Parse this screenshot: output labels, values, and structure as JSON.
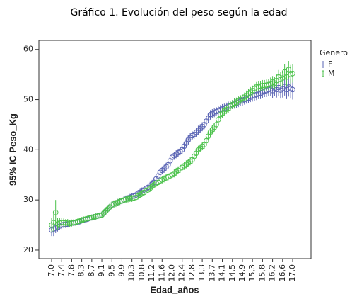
{
  "chart_data": {
    "type": "errorbar",
    "title": "Gráfico 1. Evolución del peso según la edad",
    "x_label": "Edad_años",
    "y_label": "95% IC Peso_Kg",
    "legend_title": "Genero",
    "categories": [
      "7,0",
      null,
      null,
      null,
      null,
      "7,4",
      null,
      null,
      null,
      null,
      "7,8",
      null,
      null,
      null,
      null,
      "8,3",
      null,
      null,
      null,
      null,
      "8,7",
      null,
      null,
      null,
      null,
      "9,1",
      null,
      null,
      null,
      null,
      "9,5",
      null,
      null,
      null,
      null,
      "9,9",
      null,
      null,
      null,
      null,
      "10,3",
      null,
      null,
      null,
      null,
      "10,8",
      null,
      null,
      null,
      null,
      "11,2",
      null,
      null,
      null,
      null,
      "11,6",
      null,
      null,
      null,
      null,
      "12,0",
      null,
      null,
      null,
      null,
      "12,4",
      null,
      null,
      null,
      null,
      "12,8",
      null,
      null,
      null,
      null,
      "13,3",
      null,
      null,
      null,
      null,
      "13,7",
      null,
      null,
      null,
      null,
      "14,1",
      null,
      null,
      null,
      null,
      "14,5",
      null,
      null,
      null,
      null,
      "14,9",
      null,
      null,
      null,
      null,
      "15,3",
      null,
      null,
      null,
      null,
      "15,8",
      null,
      null,
      null,
      null,
      "16,2",
      null,
      null,
      null,
      null,
      "16,6",
      null,
      null,
      null,
      null,
      "17,0"
    ],
    "series": [
      {
        "name": "F",
        "color": "#5a64b4",
        "values": [
          24.0,
          24.2,
          24.4,
          24.6,
          24.8,
          25.0,
          25.1,
          25.1,
          25.2,
          25.3,
          25.4,
          25.4,
          25.5,
          25.6,
          25.7,
          25.9,
          26.0,
          26.1,
          26.2,
          26.4,
          26.5,
          26.6,
          26.7,
          26.8,
          26.9,
          27.0,
          27.4,
          27.8,
          28.2,
          28.6,
          29.0,
          29.2,
          29.3,
          29.5,
          29.7,
          29.8,
          30.0,
          30.2,
          30.3,
          30.5,
          30.7,
          30.8,
          31.0,
          31.3,
          31.5,
          31.8,
          32.0,
          32.3,
          32.5,
          32.8,
          33.2,
          33.5,
          34.2,
          34.8,
          35.5,
          35.9,
          36.2,
          36.6,
          37.0,
          37.8,
          38.5,
          38.8,
          39.1,
          39.4,
          39.7,
          40.0,
          40.7,
          41.3,
          42.0,
          42.4,
          42.8,
          43.1,
          43.5,
          43.9,
          44.2,
          44.6,
          45.0,
          45.7,
          46.3,
          47.0,
          47.2,
          47.4,
          47.6,
          47.8,
          48.0,
          48.2,
          48.3,
          48.5,
          48.7,
          48.8,
          49.0,
          49.2,
          49.3,
          49.5,
          49.7,
          49.8,
          50.0,
          50.2,
          50.3,
          50.5,
          50.7,
          50.8,
          51.0,
          51.2,
          51.3,
          51.5,
          51.7,
          51.8,
          52.0,
          52.1,
          51.8,
          52.3,
          52.0,
          52.4,
          51.9,
          52.2,
          52.6,
          52.0,
          52.5,
          52.2,
          52.0
        ],
        "errors": [
          1.2,
          1.4,
          1.0,
          0.9,
          0.8,
          0.8,
          0.7,
          0.7,
          0.7,
          0.6,
          0.6,
          0.6,
          0.6,
          0.6,
          0.6,
          0.6,
          0.6,
          0.6,
          0.6,
          0.6,
          0.6,
          0.6,
          0.6,
          0.6,
          0.6,
          0.6,
          0.7,
          0.7,
          0.7,
          0.7,
          0.7,
          0.7,
          0.7,
          0.7,
          0.7,
          0.7,
          0.7,
          0.7,
          0.7,
          0.7,
          0.7,
          0.7,
          0.7,
          0.7,
          0.7,
          0.7,
          0.7,
          0.7,
          0.8,
          0.8,
          0.8,
          0.8,
          0.8,
          0.8,
          0.8,
          0.8,
          0.8,
          0.8,
          0.8,
          0.8,
          0.8,
          0.8,
          0.8,
          0.8,
          0.8,
          0.8,
          0.9,
          0.9,
          0.9,
          0.9,
          0.9,
          0.9,
          0.9,
          0.9,
          0.9,
          0.9,
          0.9,
          0.9,
          0.9,
          0.9,
          0.9,
          0.9,
          0.9,
          0.9,
          0.9,
          0.9,
          0.9,
          0.9,
          0.9,
          0.9,
          0.9,
          1.0,
          1.0,
          1.0,
          1.0,
          1.0,
          1.0,
          1.0,
          1.0,
          1.0,
          1.1,
          1.1,
          1.1,
          1.1,
          1.2,
          1.2,
          1.2,
          1.3,
          1.3,
          1.4,
          1.5,
          1.6,
          1.6,
          1.7,
          1.7,
          1.8,
          1.8,
          1.9,
          1.9,
          2.0,
          2.0
        ]
      },
      {
        "name": "M",
        "color": "#4cc24c",
        "values": [
          25.0,
          25.5,
          27.5,
          25.2,
          25.4,
          25.5,
          25.5,
          25.4,
          25.5,
          25.3,
          25.4,
          25.5,
          25.5,
          25.7,
          25.8,
          26.0,
          26.1,
          26.2,
          26.3,
          26.4,
          26.5,
          26.6,
          26.7,
          26.8,
          26.9,
          27.0,
          27.4,
          27.8,
          28.2,
          28.6,
          29.0,
          29.2,
          29.3,
          29.5,
          29.7,
          29.8,
          30.0,
          30.1,
          30.2,
          30.3,
          30.3,
          30.4,
          30.5,
          30.8,
          31.0,
          31.3,
          31.5,
          31.8,
          32.0,
          32.3,
          32.7,
          33.0,
          33.3,
          33.5,
          33.8,
          34.0,
          34.2,
          34.4,
          34.6,
          34.8,
          35.0,
          35.3,
          35.6,
          35.9,
          36.2,
          36.5,
          36.8,
          37.1,
          37.4,
          37.7,
          38.0,
          38.7,
          39.3,
          40.0,
          40.3,
          40.7,
          41.0,
          41.8,
          42.7,
          43.5,
          44.0,
          44.5,
          45.0,
          46.0,
          47.0,
          47.3,
          47.7,
          48.0,
          48.3,
          48.7,
          49.0,
          49.3,
          49.5,
          49.8,
          50.0,
          50.3,
          50.5,
          50.8,
          51.2,
          51.5,
          51.8,
          52.2,
          52.5,
          52.6,
          52.7,
          52.8,
          52.8,
          52.9,
          53.0,
          53.2,
          53.5,
          53.3,
          53.8,
          54.5,
          54.0,
          54.3,
          55.5,
          54.5,
          56.0,
          55.0,
          55.2
        ],
        "errors": [
          1.5,
          1.8,
          2.5,
          1.2,
          1.0,
          0.9,
          0.8,
          0.8,
          0.7,
          0.7,
          0.7,
          0.7,
          0.7,
          0.6,
          0.6,
          0.6,
          0.6,
          0.6,
          0.6,
          0.6,
          0.6,
          0.6,
          0.6,
          0.6,
          0.6,
          0.6,
          0.7,
          0.7,
          0.7,
          0.7,
          0.7,
          0.7,
          0.7,
          0.7,
          0.7,
          0.7,
          0.7,
          0.7,
          0.7,
          0.7,
          0.7,
          0.7,
          0.7,
          0.7,
          0.7,
          0.7,
          0.7,
          0.7,
          0.7,
          0.7,
          0.7,
          0.7,
          0.7,
          0.7,
          0.7,
          0.7,
          0.7,
          0.7,
          0.7,
          0.7,
          0.8,
          0.8,
          0.8,
          0.8,
          0.8,
          0.8,
          0.8,
          0.8,
          0.8,
          0.8,
          0.8,
          0.8,
          0.8,
          0.8,
          0.8,
          0.8,
          0.8,
          0.9,
          0.9,
          0.9,
          0.9,
          0.9,
          0.9,
          0.9,
          0.9,
          0.9,
          0.9,
          0.9,
          0.9,
          0.9,
          0.9,
          0.9,
          0.9,
          0.9,
          0.9,
          0.9,
          0.9,
          1.0,
          1.0,
          1.0,
          1.0,
          1.0,
          1.0,
          1.0,
          1.0,
          1.1,
          1.1,
          1.1,
          1.1,
          1.2,
          1.2,
          1.2,
          1.3,
          1.4,
          1.5,
          1.5,
          1.6,
          1.8,
          1.7,
          1.9,
          1.8
        ]
      }
    ],
    "ylim": [
      18.3,
      61.8
    ],
    "yticks": [
      20,
      30,
      40,
      50,
      60
    ]
  }
}
